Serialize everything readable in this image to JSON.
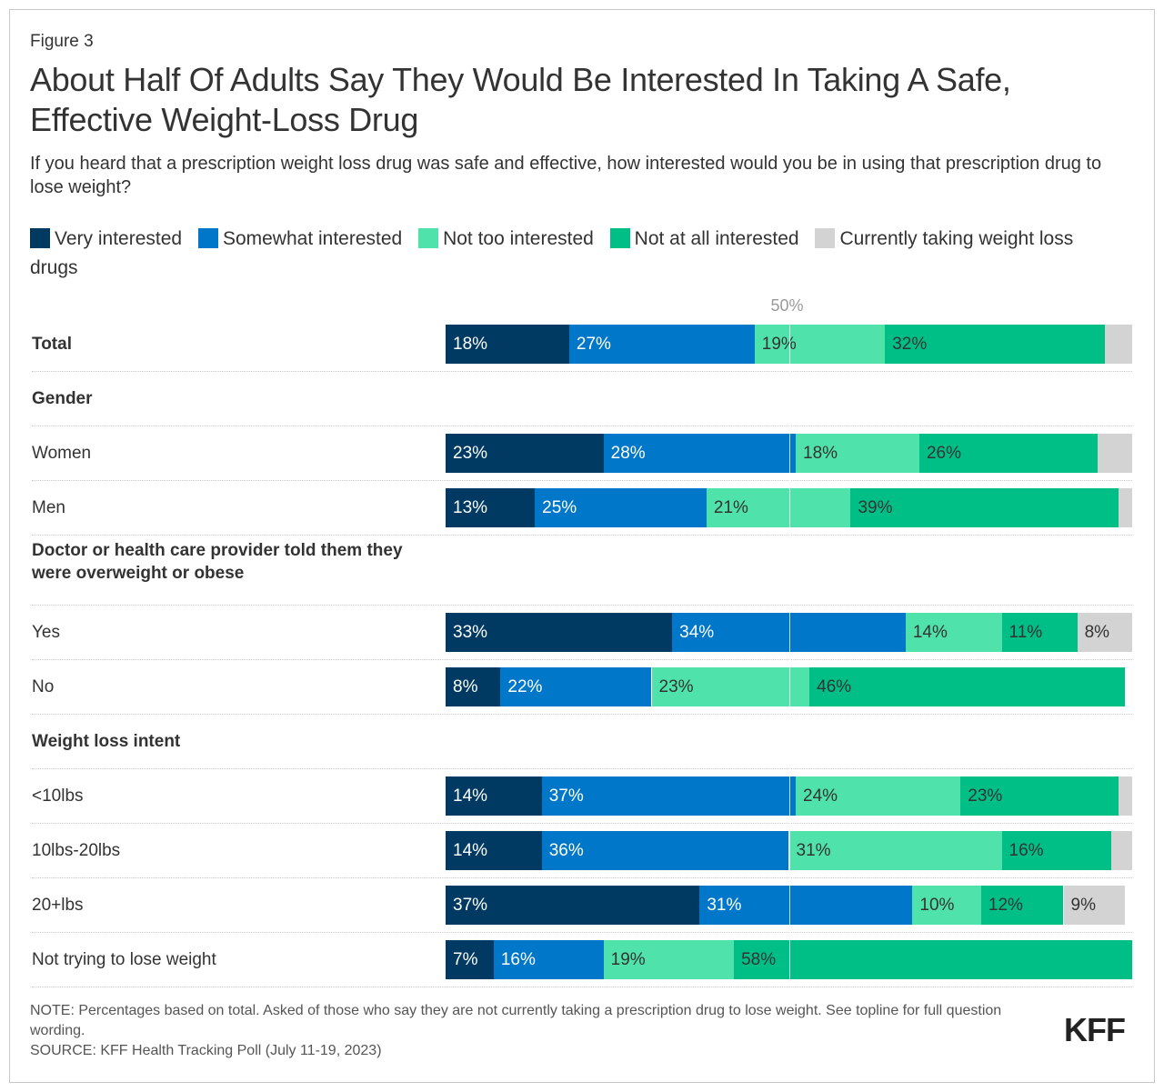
{
  "figure_label": "Figure 3",
  "title": "About Half Of Adults Say They Would Be Interested In Taking A Safe, Effective Weight-Loss Drug",
  "subtitle": "If you heard that a prescription weight loss drug was safe and effective, how interested would you be in using that prescription drug to lose weight?",
  "legend": [
    {
      "label": "Very interested",
      "color": "#003a63"
    },
    {
      "label": "Somewhat interested",
      "color": "#0077c8"
    },
    {
      "label": "Not too interested",
      "color": "#4fe3ab"
    },
    {
      "label": "Not at all interested",
      "color": "#00bf86"
    },
    {
      "label": "Currently taking weight loss drugs",
      "color": "#d3d3d3"
    }
  ],
  "note": "NOTE: Percentages based on total. Asked of those who say they are not currently taking a prescription drug to lose weight. See topline for full question wording.",
  "source": "SOURCE: KFF Health Tracking Poll (July 11-19, 2023)",
  "logo": "KFF",
  "chart_data": {
    "type": "bar",
    "orientation": "horizontal",
    "stacked": true,
    "xlim": [
      0,
      100
    ],
    "reference_line": {
      "value": 50,
      "label": "50%"
    },
    "series_names": [
      "Very interested",
      "Somewhat interested",
      "Not too interested",
      "Not at all interested",
      "Currently taking weight loss drugs"
    ],
    "series_colors": [
      "#003a63",
      "#0077c8",
      "#4fe3ab",
      "#00bf86",
      "#d3d3d3"
    ],
    "rows": [
      {
        "label": "Total",
        "header": true,
        "values": [
          18,
          27,
          19,
          32,
          4
        ],
        "labels": [
          "18%",
          "27%",
          "19%",
          "32%",
          ""
        ]
      },
      {
        "label": "Gender",
        "section": true
      },
      {
        "label": "Women",
        "values": [
          23,
          28,
          18,
          26,
          5
        ],
        "labels": [
          "23%",
          "28%",
          "18%",
          "26%",
          ""
        ]
      },
      {
        "label": "Men",
        "values": [
          13,
          25,
          21,
          39,
          2
        ],
        "labels": [
          "13%",
          "25%",
          "21%",
          "39%",
          ""
        ]
      },
      {
        "label": "Doctor or health care provider told them they were overweight or obese",
        "section": true,
        "two_line": true
      },
      {
        "label": "Yes",
        "values": [
          33,
          34,
          14,
          11,
          8
        ],
        "labels": [
          "33%",
          "34%",
          "14%",
          "11%",
          "8%"
        ]
      },
      {
        "label": "No",
        "values": [
          8,
          22,
          23,
          46,
          0
        ],
        "labels": [
          "8%",
          "22%",
          "23%",
          "46%",
          ""
        ]
      },
      {
        "label": "Weight loss intent",
        "section": true
      },
      {
        "label": "<10lbs",
        "values": [
          14,
          37,
          24,
          23,
          2
        ],
        "labels": [
          "14%",
          "37%",
          "24%",
          "23%",
          ""
        ]
      },
      {
        "label": "10lbs-20lbs",
        "values": [
          14,
          36,
          31,
          16,
          3
        ],
        "labels": [
          "14%",
          "36%",
          "31%",
          "16%",
          ""
        ]
      },
      {
        "label": "20+lbs",
        "values": [
          37,
          31,
          10,
          12,
          9
        ],
        "labels": [
          "37%",
          "31%",
          "10%",
          "12%",
          "9%"
        ]
      },
      {
        "label": "Not trying to lose weight",
        "values": [
          7,
          16,
          19,
          58,
          0
        ],
        "labels": [
          "7%",
          "16%",
          "19%",
          "58%",
          ""
        ]
      }
    ]
  }
}
